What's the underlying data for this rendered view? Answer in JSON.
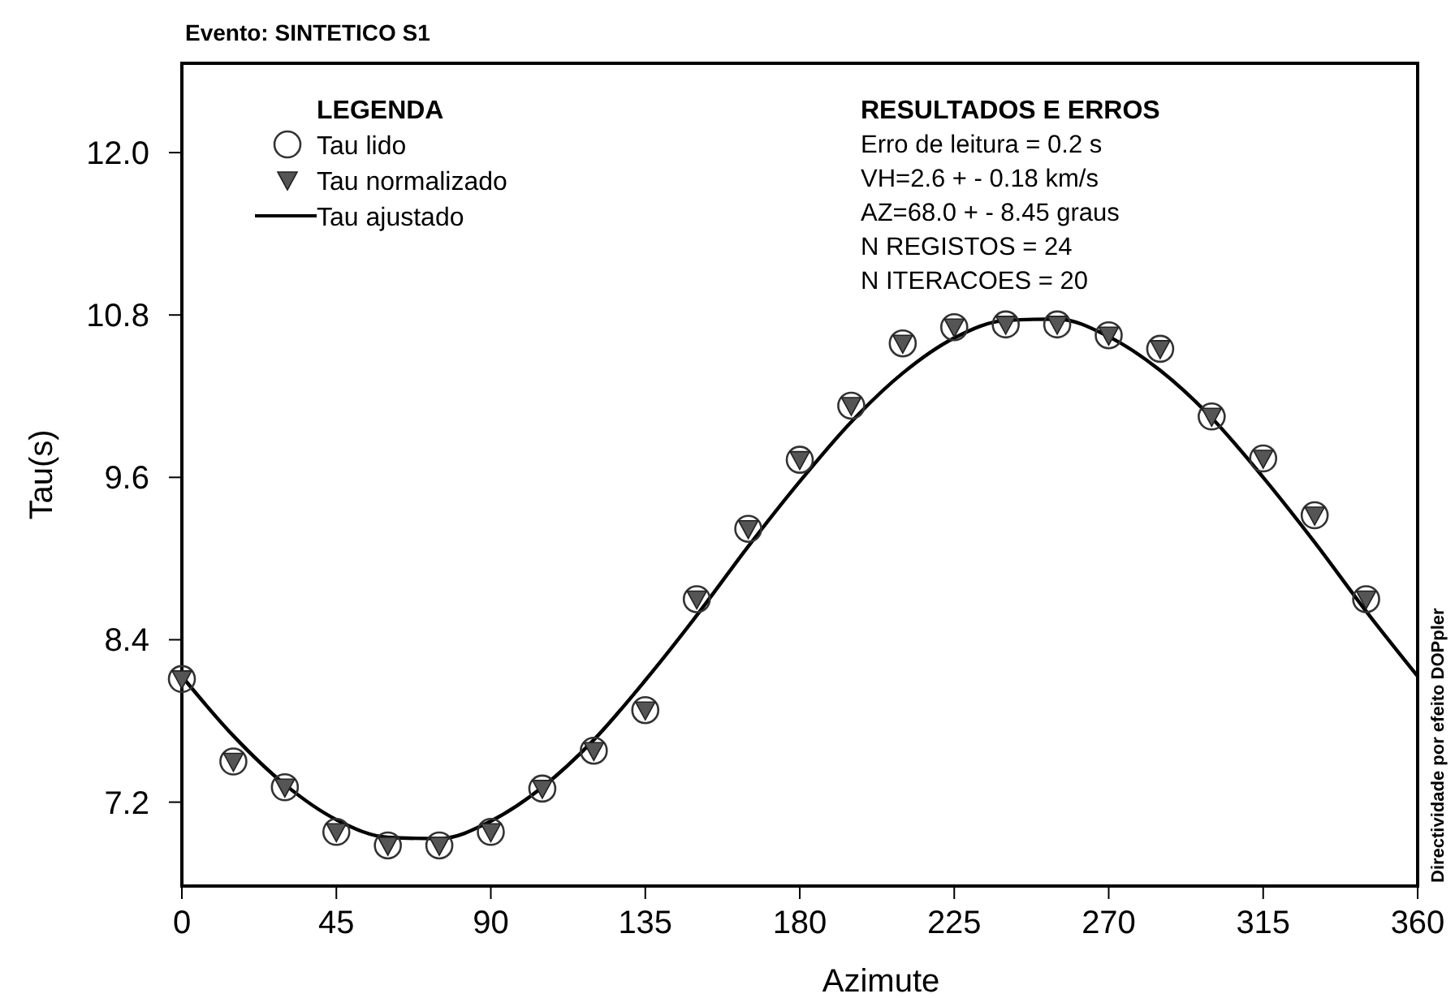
{
  "chart_data": {
    "type": "scatter",
    "title": "Evento: SINTETICO S1",
    "xlabel": "Azimute",
    "ylabel": "Tau(s)",
    "legend_title": "LEGENDA",
    "legend": "top left",
    "xlim": [
      0,
      360
    ],
    "xticks": [
      0,
      45,
      90,
      135,
      180,
      225,
      270,
      315,
      360
    ],
    "ylim": [
      6.58,
      12.66
    ],
    "yticks": [
      7.2,
      8.4,
      9.6,
      10.8,
      {
        "value": 12,
        "label": "12.0"
      }
    ],
    "x": [
      0,
      15,
      30,
      45,
      60,
      75,
      90,
      105,
      120,
      135,
      150,
      165,
      180,
      195,
      210,
      225,
      240,
      255,
      270,
      285,
      300,
      315,
      330,
      345
    ],
    "series": [
      {
        "name": "Tau lido",
        "marker": "circle",
        "color": "#333333",
        "values": [
          8.11,
          7.5,
          7.31,
          6.98,
          6.88,
          6.88,
          6.98,
          7.3,
          7.58,
          7.88,
          8.7,
          9.22,
          9.73,
          10.13,
          10.59,
          10.71,
          10.73,
          10.73,
          10.65,
          10.55,
          10.05,
          9.74,
          9.32,
          8.7
        ]
      },
      {
        "name": "Tau normalizado",
        "marker": "triangle",
        "color": "#555555",
        "values": [
          8.11,
          7.5,
          7.31,
          6.98,
          6.88,
          6.88,
          6.98,
          7.3,
          7.58,
          7.88,
          8.7,
          9.22,
          9.73,
          10.13,
          10.59,
          10.71,
          10.73,
          10.73,
          10.65,
          10.55,
          10.05,
          9.74,
          9.32,
          8.7
        ]
      },
      {
        "name": "Tau ajustado",
        "type": "line",
        "line_style": "solid",
        "color": "#000000",
        "x": [
          0,
          15,
          30,
          45,
          60,
          75,
          90,
          105,
          120,
          135,
          150,
          165,
          180,
          195,
          210,
          225,
          240,
          255,
          270,
          285,
          300,
          315,
          330,
          345,
          360
        ],
        "values": [
          8.13,
          7.69,
          7.33,
          7.07,
          6.94,
          6.93,
          7.06,
          7.31,
          7.66,
          8.1,
          8.58,
          9.09,
          9.57,
          10.01,
          10.37,
          10.63,
          10.76,
          10.77,
          10.64,
          10.39,
          10.04,
          9.6,
          9.12,
          8.61,
          8.13
        ]
      }
    ],
    "annotations": [
      "RESULTADOS E ERROS",
      "Erro de leitura = 0.2 s",
      "VH=2.6 + - 0.18 km/s",
      "AZ=68.0 + - 8.45 graus",
      "N REGISTOS = 24",
      "N ITERACOES = 20",
      "Directividade por efeito DOPpler"
    ]
  }
}
